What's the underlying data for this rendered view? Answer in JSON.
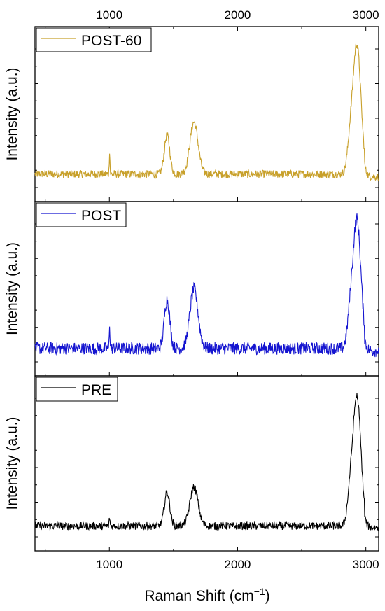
{
  "chart_data": {
    "type": "line",
    "layout": "stacked-panels",
    "xlabel": "Raman Shift (cm",
    "xlabel_superscript": "−1",
    "xlabel_suffix": ")",
    "xlim": [
      420,
      3100
    ],
    "xticks": [
      1000,
      2000,
      3000
    ],
    "xtick_labels": [
      "1000",
      "2000",
      "3000"
    ],
    "ylabel": "Intensity (a.u.)",
    "y_ticks_labeled": false,
    "grid": false,
    "legend_position": "top-left",
    "panels": [
      {
        "series": [
          {
            "name": "POST-60",
            "color": "#c8a02a"
          }
        ],
        "peaks": [
          {
            "x": 1002,
            "y": 0.18
          },
          {
            "x": 1450,
            "y": 0.3
          },
          {
            "x": 1660,
            "y": 0.4
          },
          {
            "x": 2930,
            "y": 1.0
          }
        ],
        "baseline_y": 0.05
      },
      {
        "series": [
          {
            "name": "POST",
            "color": "#1515d0"
          }
        ],
        "peaks": [
          {
            "x": 1002,
            "y": 0.2
          },
          {
            "x": 1450,
            "y": 0.38
          },
          {
            "x": 1660,
            "y": 0.46
          },
          {
            "x": 2930,
            "y": 1.0
          }
        ],
        "baseline_y": 0.05
      },
      {
        "series": [
          {
            "name": "PRE",
            "color": "#000000"
          }
        ],
        "peaks": [
          {
            "x": 1002,
            "y": 0.07
          },
          {
            "x": 1450,
            "y": 0.26
          },
          {
            "x": 1660,
            "y": 0.3
          },
          {
            "x": 2930,
            "y": 1.0
          }
        ],
        "baseline_y": 0.03
      }
    ]
  }
}
